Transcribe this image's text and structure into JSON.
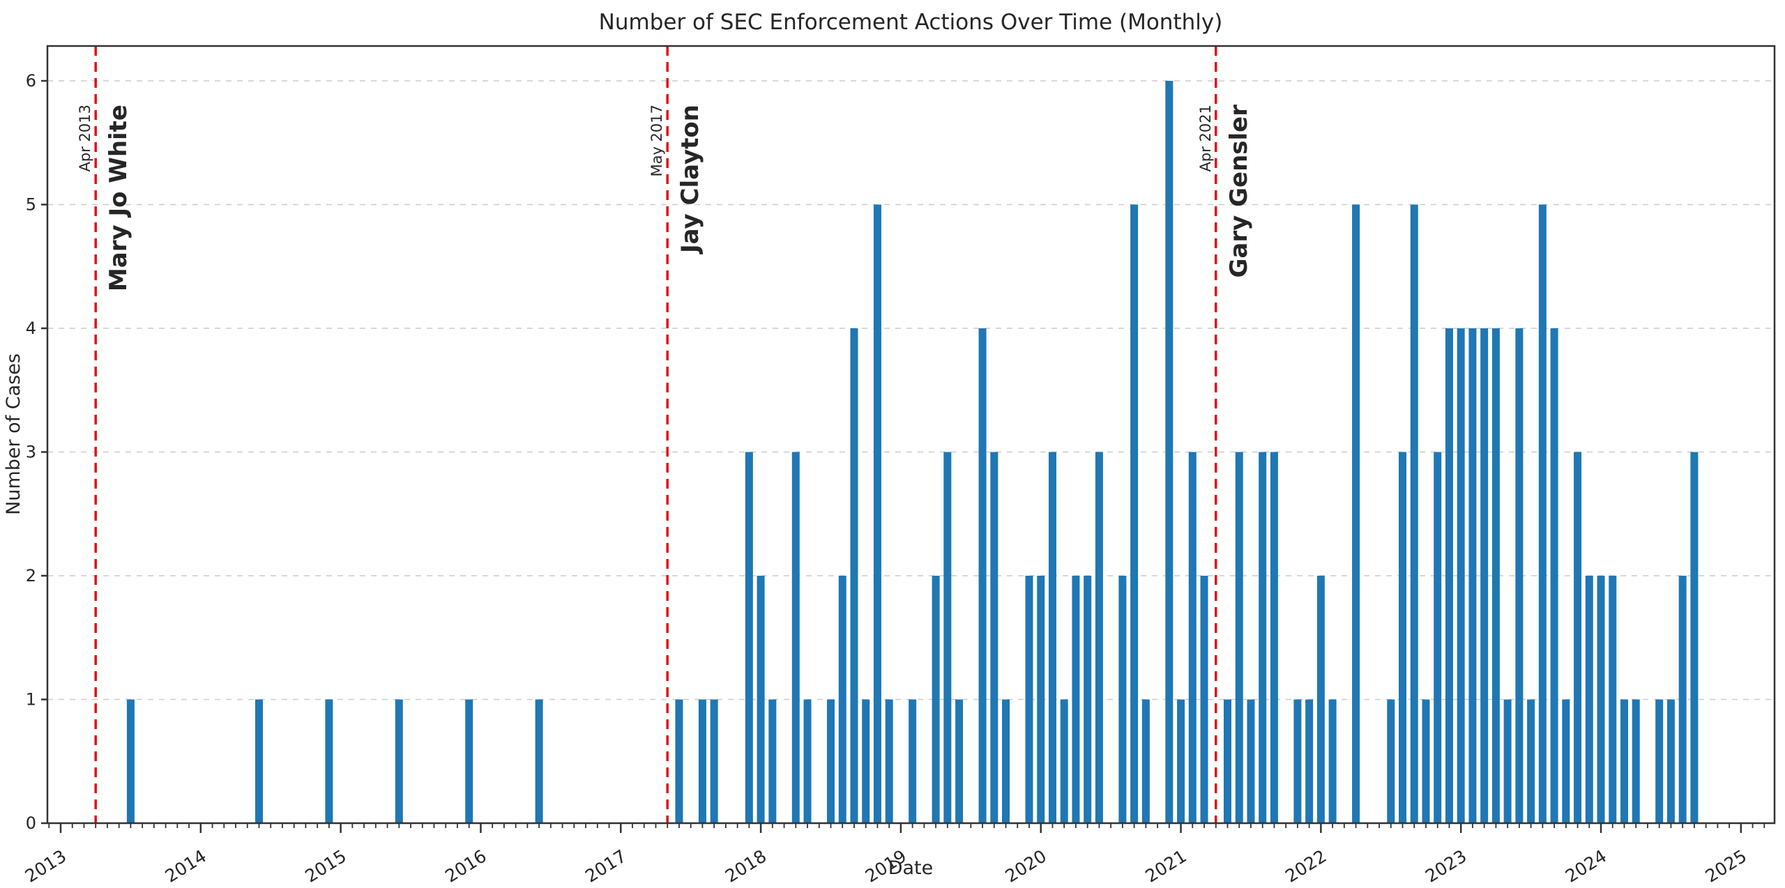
{
  "page": {
    "background": "#ffffff"
  },
  "chart_data": {
    "type": "bar",
    "title": "Number of SEC Enforcement Actions Over Time (Monthly)",
    "xlabel": "Date",
    "ylabel": "Number of Cases",
    "ylim": [
      0,
      6.3
    ],
    "yticks": [
      0,
      1,
      2,
      3,
      4,
      5,
      6
    ],
    "xticks_years": [
      2013,
      2014,
      2015,
      2016,
      2017,
      2018,
      2019,
      2020,
      2021,
      2022,
      2023,
      2024,
      2025
    ],
    "x_range_months": [
      "2012-12",
      "2025-03"
    ],
    "grid": "horizontal-dashed",
    "bar_color": "#1f77b4",
    "annotation_color": "#e01212",
    "grid_color": "#cccccc",
    "spine_color": "#333333",
    "unlisted_months_value": 0,
    "monthly_counts": [
      {
        "month": "2013-07",
        "value": 1
      },
      {
        "month": "2014-06",
        "value": 1
      },
      {
        "month": "2014-12",
        "value": 1
      },
      {
        "month": "2015-06",
        "value": 1
      },
      {
        "month": "2015-12",
        "value": 1
      },
      {
        "month": "2016-06",
        "value": 1
      },
      {
        "month": "2017-06",
        "value": 1
      },
      {
        "month": "2017-08",
        "value": 1
      },
      {
        "month": "2017-09",
        "value": 1
      },
      {
        "month": "2017-12",
        "value": 3
      },
      {
        "month": "2018-01",
        "value": 2
      },
      {
        "month": "2018-02",
        "value": 1
      },
      {
        "month": "2018-04",
        "value": 3
      },
      {
        "month": "2018-05",
        "value": 1
      },
      {
        "month": "2018-07",
        "value": 1
      },
      {
        "month": "2018-08",
        "value": 2
      },
      {
        "month": "2018-09",
        "value": 4
      },
      {
        "month": "2018-10",
        "value": 1
      },
      {
        "month": "2018-11",
        "value": 5
      },
      {
        "month": "2018-12",
        "value": 1
      },
      {
        "month": "2019-02",
        "value": 1
      },
      {
        "month": "2019-04",
        "value": 2
      },
      {
        "month": "2019-05",
        "value": 3
      },
      {
        "month": "2019-06",
        "value": 1
      },
      {
        "month": "2019-08",
        "value": 4
      },
      {
        "month": "2019-09",
        "value": 3
      },
      {
        "month": "2019-10",
        "value": 1
      },
      {
        "month": "2019-12",
        "value": 2
      },
      {
        "month": "2020-01",
        "value": 2
      },
      {
        "month": "2020-02",
        "value": 3
      },
      {
        "month": "2020-03",
        "value": 1
      },
      {
        "month": "2020-04",
        "value": 2
      },
      {
        "month": "2020-05",
        "value": 2
      },
      {
        "month": "2020-06",
        "value": 3
      },
      {
        "month": "2020-08",
        "value": 2
      },
      {
        "month": "2020-09",
        "value": 5
      },
      {
        "month": "2020-10",
        "value": 1
      },
      {
        "month": "2020-12",
        "value": 6
      },
      {
        "month": "2021-01",
        "value": 1
      },
      {
        "month": "2021-02",
        "value": 3
      },
      {
        "month": "2021-03",
        "value": 2
      },
      {
        "month": "2021-05",
        "value": 1
      },
      {
        "month": "2021-06",
        "value": 3
      },
      {
        "month": "2021-07",
        "value": 1
      },
      {
        "month": "2021-08",
        "value": 3
      },
      {
        "month": "2021-09",
        "value": 3
      },
      {
        "month": "2021-11",
        "value": 1
      },
      {
        "month": "2021-12",
        "value": 1
      },
      {
        "month": "2022-01",
        "value": 2
      },
      {
        "month": "2022-02",
        "value": 1
      },
      {
        "month": "2022-04",
        "value": 5
      },
      {
        "month": "2022-07",
        "value": 1
      },
      {
        "month": "2022-08",
        "value": 3
      },
      {
        "month": "2022-09",
        "value": 5
      },
      {
        "month": "2022-10",
        "value": 1
      },
      {
        "month": "2022-11",
        "value": 3
      },
      {
        "month": "2022-12",
        "value": 4
      },
      {
        "month": "2023-01",
        "value": 4
      },
      {
        "month": "2023-02",
        "value": 4
      },
      {
        "month": "2023-03",
        "value": 4
      },
      {
        "month": "2023-04",
        "value": 4
      },
      {
        "month": "2023-05",
        "value": 1
      },
      {
        "month": "2023-06",
        "value": 4
      },
      {
        "month": "2023-07",
        "value": 1
      },
      {
        "month": "2023-08",
        "value": 5
      },
      {
        "month": "2023-09",
        "value": 4
      },
      {
        "month": "2023-10",
        "value": 1
      },
      {
        "month": "2023-11",
        "value": 3
      },
      {
        "month": "2023-12",
        "value": 2
      },
      {
        "month": "2024-01",
        "value": 2
      },
      {
        "month": "2024-02",
        "value": 2
      },
      {
        "month": "2024-03",
        "value": 1
      },
      {
        "month": "2024-04",
        "value": 1
      },
      {
        "month": "2024-06",
        "value": 1
      },
      {
        "month": "2024-07",
        "value": 1
      },
      {
        "month": "2024-08",
        "value": 2
      },
      {
        "month": "2024-09",
        "value": 3
      }
    ],
    "annotations": [
      {
        "month": "2013-04",
        "date_label": "Apr 2013",
        "name": "Mary Jo White"
      },
      {
        "month": "2017-05",
        "date_label": "May 2017",
        "name": "Jay Clayton"
      },
      {
        "month": "2021-04",
        "date_label": "Apr 2021",
        "name": "Gary Gensler"
      }
    ]
  }
}
